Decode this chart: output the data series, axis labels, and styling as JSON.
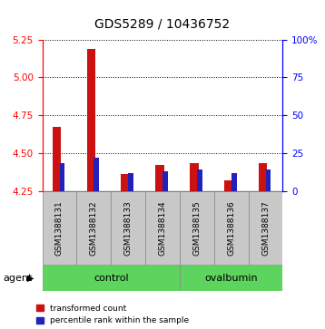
{
  "title": "GDS5289 / 10436752",
  "samples": [
    "GSM1388131",
    "GSM1388132",
    "GSM1388133",
    "GSM1388134",
    "GSM1388135",
    "GSM1388136",
    "GSM1388137"
  ],
  "red_values": [
    4.67,
    5.19,
    4.36,
    4.42,
    4.43,
    4.32,
    4.43
  ],
  "blue_values": [
    18,
    22,
    12,
    13,
    14,
    12,
    14
  ],
  "ylim_left": [
    4.25,
    5.25
  ],
  "ylim_right": [
    0,
    100
  ],
  "yticks_left": [
    4.25,
    4.5,
    4.75,
    5.0,
    5.25
  ],
  "yticks_right": [
    0,
    25,
    50,
    75,
    100
  ],
  "ytick_labels_right": [
    "0",
    "25",
    "50",
    "75",
    "100%"
  ],
  "red_color": "#cc1111",
  "blue_color": "#2222bb",
  "background_labels": "#c8c8c8",
  "green_color": "#5dd45d",
  "legend_red": "transformed count",
  "legend_blue": "percentile rank within the sample",
  "title_fontsize": 10,
  "tick_fontsize": 7.5,
  "sample_fontsize": 6.5,
  "group_fontsize": 8,
  "legend_fontsize": 6.5
}
